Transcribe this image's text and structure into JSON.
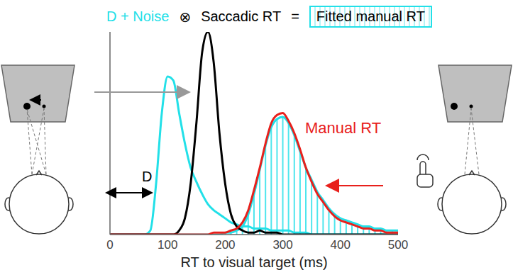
{
  "chart_data": {
    "type": "line",
    "xlabel": "RT to visual target (ms)",
    "annotations": [
      "⊗",
      "=",
      "D"
    ],
    "x": [
      0,
      10,
      20,
      30,
      40,
      50,
      60,
      70,
      80,
      90,
      100,
      110,
      120,
      130,
      140,
      150,
      160,
      170,
      180,
      190,
      200,
      210,
      220,
      230,
      240,
      250,
      260,
      270,
      280,
      290,
      300,
      310,
      320,
      330,
      340,
      350,
      360,
      370,
      380,
      390,
      400,
      410,
      420,
      430,
      440,
      450,
      460,
      470,
      480,
      490,
      500
    ],
    "xlim": [
      0,
      500
    ],
    "xticks": [
      0,
      100,
      200,
      300,
      400,
      500
    ],
    "ylim": [
      0,
      1
    ],
    "grid": false,
    "tick_labels": "x",
    "series": [
      {
        "name": "D + Noise",
        "color": "#22e0e8",
        "type": "line",
        "values": [
          0,
          0,
          0,
          0,
          0,
          0,
          0,
          0.02,
          0.25,
          0.6,
          0.78,
          0.76,
          0.6,
          0.45,
          0.33,
          0.26,
          0.2,
          0.15,
          0.12,
          0.1,
          0.08,
          0.06,
          0.05,
          0.04,
          0.04,
          0.03,
          0.03,
          0.03,
          0.02,
          0.02,
          0.02,
          0.02,
          0.01,
          0.01,
          0.01,
          0,
          0,
          0,
          0,
          0,
          0,
          0,
          0,
          0,
          0,
          0,
          0,
          0,
          0,
          0,
          0
        ]
      },
      {
        "name": "Saccadic RT",
        "color": "#000000",
        "type": "line",
        "values": [
          0,
          0,
          0,
          0,
          0,
          0,
          0,
          0,
          0,
          0,
          0,
          0,
          0.02,
          0.08,
          0.25,
          0.55,
          0.9,
          1.0,
          0.85,
          0.5,
          0.25,
          0.1,
          0.04,
          0.02,
          0.01,
          0.01,
          0.02,
          0.01,
          0.01,
          0.01,
          0,
          0,
          0,
          0,
          0,
          0,
          0,
          0,
          0,
          0,
          0,
          0,
          0,
          0,
          0,
          0,
          0,
          0,
          0,
          0,
          0
        ]
      },
      {
        "name": "Fitted manual RT",
        "color": "#22e0e8",
        "type": "bar",
        "values": [
          0,
          0,
          0,
          0,
          0,
          0,
          0,
          0,
          0,
          0,
          0,
          0,
          0,
          0,
          0,
          0,
          0,
          0,
          0,
          0,
          0.01,
          0.01,
          0.02,
          0.04,
          0.1,
          0.2,
          0.32,
          0.44,
          0.53,
          0.57,
          0.58,
          0.55,
          0.49,
          0.41,
          0.33,
          0.27,
          0.21,
          0.17,
          0.13,
          0.1,
          0.08,
          0.07,
          0.06,
          0.05,
          0.04,
          0.04,
          0.03,
          0.03,
          0.02,
          0.02,
          0.02
        ]
      },
      {
        "name": "Manual RT",
        "color": "#e8201c",
        "type": "line",
        "values": [
          0,
          0,
          0,
          0,
          0,
          0,
          0,
          0,
          0,
          0,
          0,
          0,
          0,
          0,
          0,
          0,
          0,
          0,
          0.01,
          0.01,
          0.01,
          0.02,
          0.03,
          0.06,
          0.12,
          0.22,
          0.33,
          0.45,
          0.55,
          0.59,
          0.6,
          0.56,
          0.5,
          0.42,
          0.33,
          0.26,
          0.2,
          0.16,
          0.12,
          0.09,
          0.07,
          0.06,
          0.05,
          0.04,
          0.03,
          0.03,
          0.02,
          0.02,
          0.01,
          0.01,
          0.01
        ]
      }
    ]
  }
}
